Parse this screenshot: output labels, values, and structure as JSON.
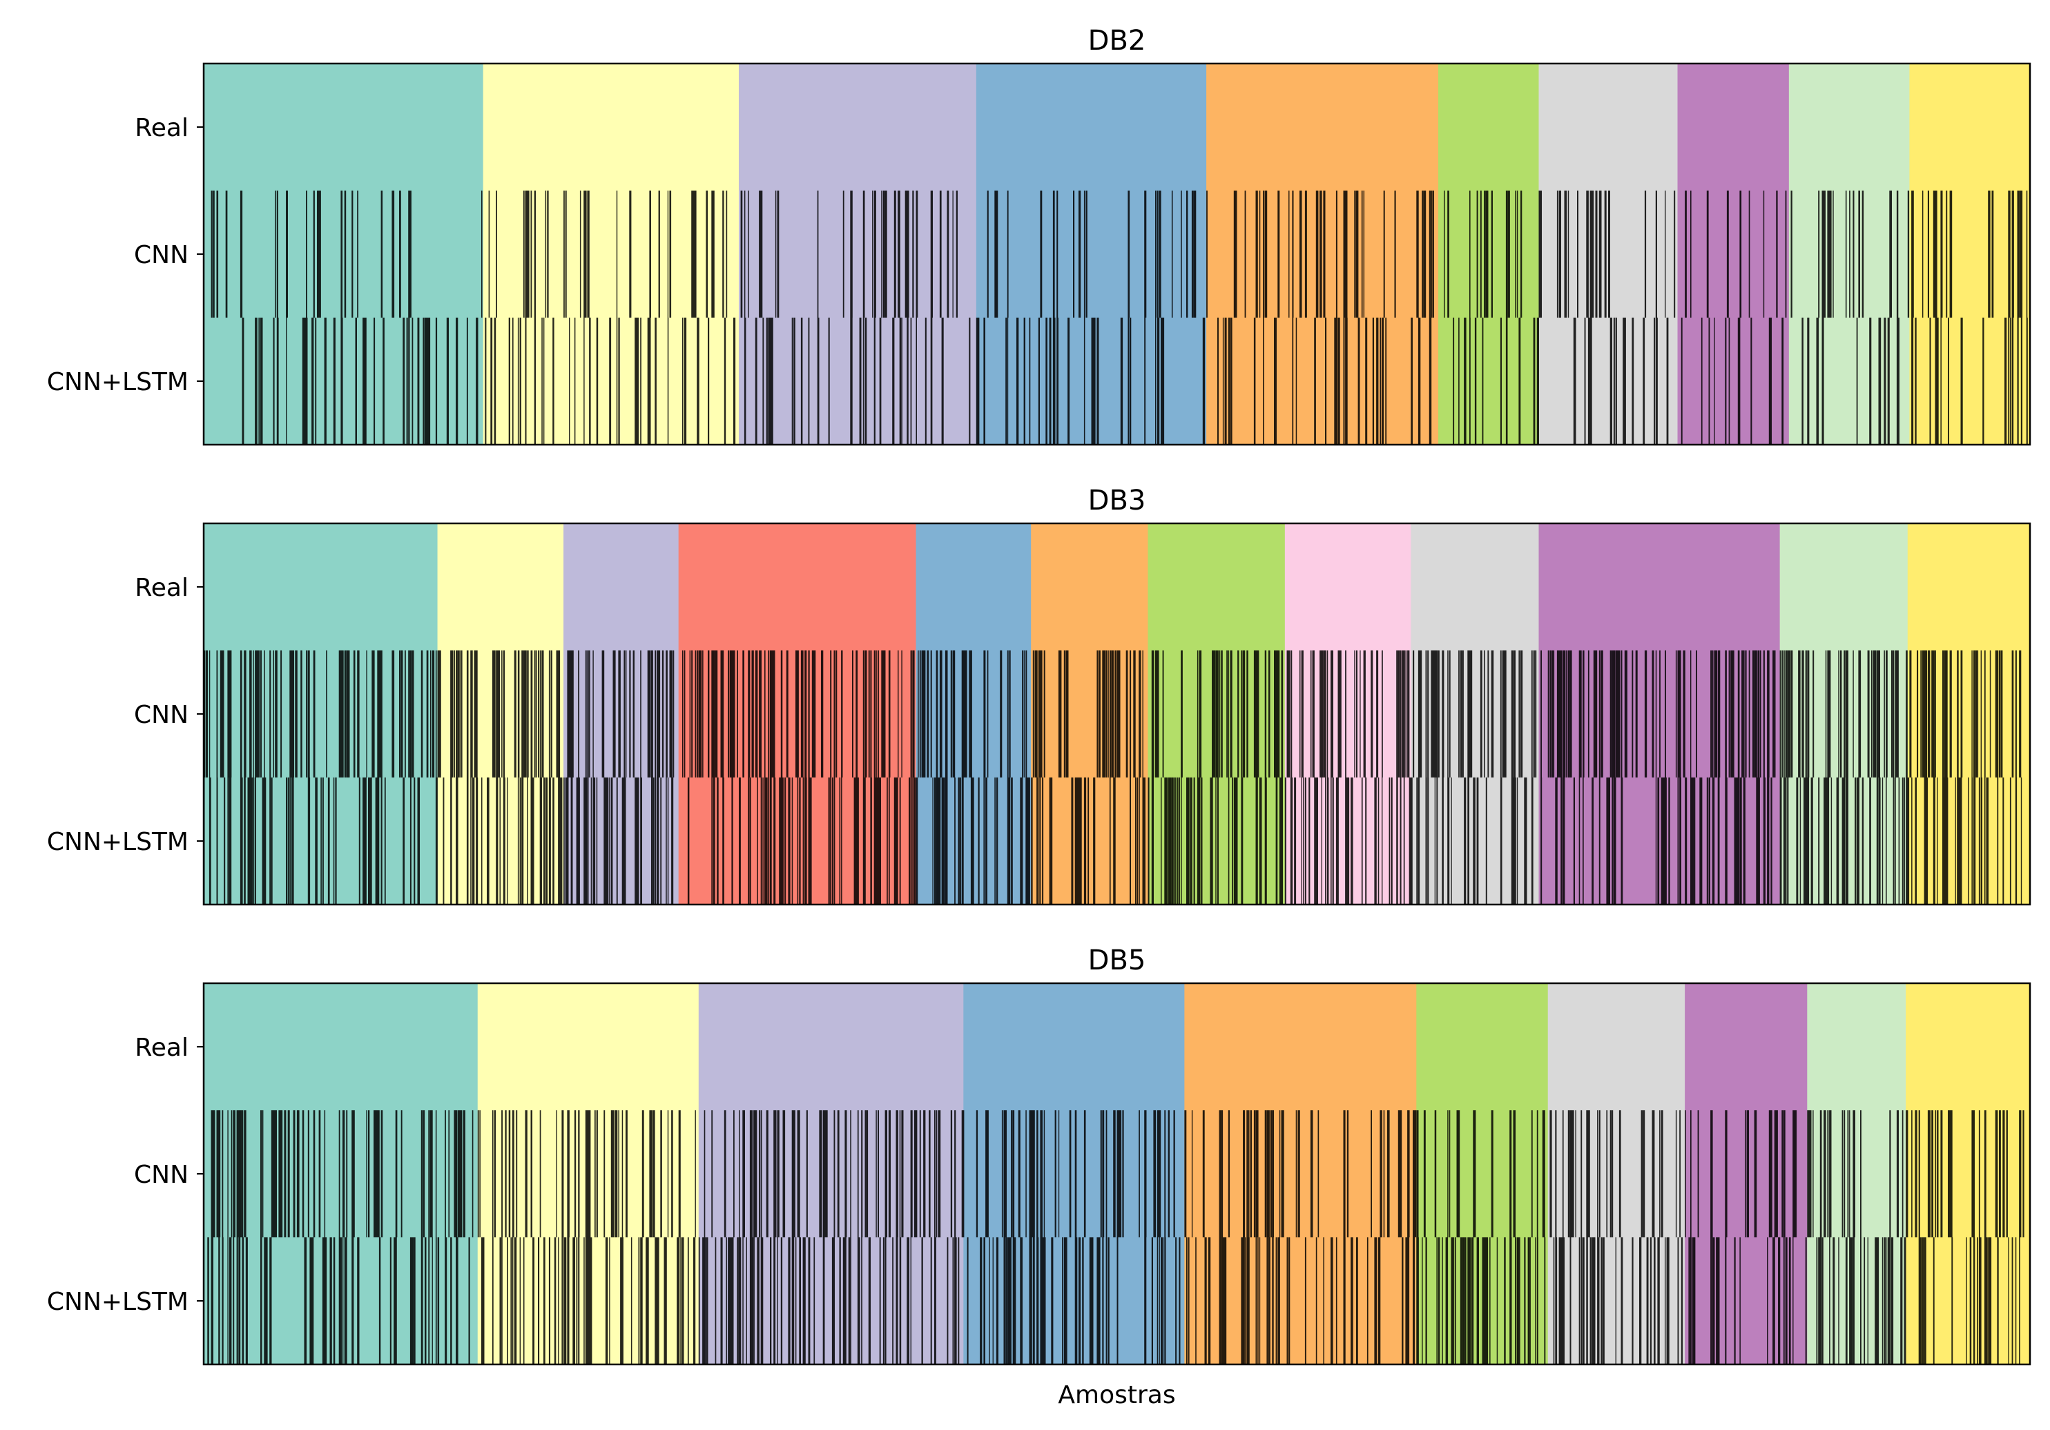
{
  "chart_data": [
    {
      "type": "heatmap",
      "title": "DB2",
      "rows": [
        "Real",
        "CNN",
        "CNN+LSTM"
      ],
      "xlabel": "",
      "x_ticks": false,
      "total_samples": 1000,
      "palette": [
        "#8dd3c7",
        "#ffffb3",
        "#bebada",
        "#80b1d3",
        "#fdb462",
        "#b3de69",
        "#d9d9d9",
        "#bc80bd",
        "#ccebc5",
        "#ffed6f"
      ],
      "segments": [
        {
          "start": 0,
          "end": 153,
          "color": "#8dd3c7"
        },
        {
          "start": 153,
          "end": 293,
          "color": "#ffffb3"
        },
        {
          "start": 293,
          "end": 423,
          "color": "#bebada"
        },
        {
          "start": 423,
          "end": 549,
          "color": "#80b1d3"
        },
        {
          "start": 549,
          "end": 676,
          "color": "#fdb462"
        },
        {
          "start": 676,
          "end": 731,
          "color": "#b3de69"
        },
        {
          "start": 731,
          "end": 807,
          "color": "#d9d9d9"
        },
        {
          "start": 807,
          "end": 868,
          "color": "#bc80bd"
        },
        {
          "start": 868,
          "end": 934,
          "color": "#ccebc5"
        },
        {
          "start": 934,
          "end": 1000,
          "color": "#ffed6f"
        }
      ],
      "error_rate": {
        "CNN": 0.2,
        "CNN+LSTM": 0.24
      }
    },
    {
      "type": "heatmap",
      "title": "DB3",
      "rows": [
        "Real",
        "CNN",
        "CNN+LSTM"
      ],
      "xlabel": "",
      "x_ticks": false,
      "total_samples": 1000,
      "palette": [
        "#8dd3c7",
        "#ffffb3",
        "#bebada",
        "#fb8072",
        "#80b1d3",
        "#fdb462",
        "#b3de69",
        "#fccde5",
        "#d9d9d9",
        "#bc80bd",
        "#ccebc5",
        "#ffed6f"
      ],
      "segments": [
        {
          "start": 0,
          "end": 128,
          "color": "#8dd3c7"
        },
        {
          "start": 128,
          "end": 197,
          "color": "#ffffb3"
        },
        {
          "start": 197,
          "end": 260,
          "color": "#bebada"
        },
        {
          "start": 260,
          "end": 390,
          "color": "#fb8072"
        },
        {
          "start": 390,
          "end": 453,
          "color": "#80b1d3"
        },
        {
          "start": 453,
          "end": 517,
          "color": "#fdb462"
        },
        {
          "start": 517,
          "end": 592,
          "color": "#b3de69"
        },
        {
          "start": 592,
          "end": 661,
          "color": "#fccde5"
        },
        {
          "start": 661,
          "end": 731,
          "color": "#d9d9d9"
        },
        {
          "start": 731,
          "end": 863,
          "color": "#bc80bd"
        },
        {
          "start": 863,
          "end": 933,
          "color": "#ccebc5"
        },
        {
          "start": 933,
          "end": 1000,
          "color": "#ffed6f"
        }
      ],
      "error_rate": {
        "CNN": 0.45,
        "CNN+LSTM": 0.4
      }
    },
    {
      "type": "heatmap",
      "title": "DB5",
      "rows": [
        "Real",
        "CNN",
        "CNN+LSTM"
      ],
      "xlabel": "Amostras",
      "x_ticks": false,
      "total_samples": 1000,
      "palette": [
        "#8dd3c7",
        "#ffffb3",
        "#bebada",
        "#80b1d3",
        "#fdb462",
        "#b3de69",
        "#d9d9d9",
        "#bc80bd",
        "#ccebc5",
        "#ffed6f"
      ],
      "segments": [
        {
          "start": 0,
          "end": 150,
          "color": "#8dd3c7"
        },
        {
          "start": 150,
          "end": 271,
          "color": "#ffffb3"
        },
        {
          "start": 271,
          "end": 416,
          "color": "#bebada"
        },
        {
          "start": 416,
          "end": 537,
          "color": "#80b1d3"
        },
        {
          "start": 537,
          "end": 664,
          "color": "#fdb462"
        },
        {
          "start": 664,
          "end": 736,
          "color": "#b3de69"
        },
        {
          "start": 736,
          "end": 811,
          "color": "#d9d9d9"
        },
        {
          "start": 811,
          "end": 878,
          "color": "#bc80bd"
        },
        {
          "start": 878,
          "end": 932,
          "color": "#ccebc5"
        },
        {
          "start": 932,
          "end": 1000,
          "color": "#ffed6f"
        }
      ],
      "error_rate": {
        "CNN": 0.32,
        "CNN+LSTM": 0.34
      }
    }
  ]
}
